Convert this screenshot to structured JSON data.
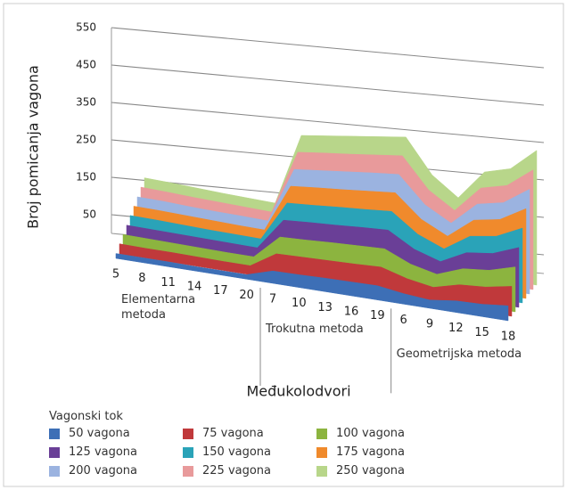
{
  "chart_data": {
    "type": "area3d",
    "y_label": "Broj pomicanja vagona",
    "x_label": "Međukolodvori",
    "legend_title": "Vagonski tok",
    "ylim": [
      0,
      550
    ],
    "yticks": [
      50,
      150,
      250,
      350,
      450,
      550
    ],
    "groups": [
      {
        "name": "Elementarna metoda",
        "categories": [
          5,
          8,
          11,
          14,
          17,
          20
        ]
      },
      {
        "name": "Trokutna metoda",
        "categories": [
          7,
          10,
          13,
          16,
          19
        ]
      },
      {
        "name": "Geometrijska metoda",
        "categories": [
          6,
          9,
          12,
          15,
          18
        ]
      }
    ],
    "series": [
      {
        "name": "50 vagona",
        "color": "#3d6fb6",
        "values": [
          13,
          13,
          13,
          12,
          12,
          12,
          33,
          34,
          36,
          37,
          38,
          28,
          22,
          31,
          33,
          40
        ]
      },
      {
        "name": "75 vagona",
        "color": "#c0393b",
        "values": [
          27,
          26,
          26,
          25,
          24,
          24,
          67,
          69,
          71,
          73,
          76,
          56,
          44,
          62,
          67,
          80
        ]
      },
      {
        "name": "100 vagona",
        "color": "#8cb43f",
        "values": [
          40,
          39,
          38,
          37,
          36,
          36,
          100,
          103,
          107,
          110,
          113,
          83,
          67,
          93,
          100,
          120
        ]
      },
      {
        "name": "125 vagona",
        "color": "#6a3f97",
        "values": [
          53,
          52,
          51,
          50,
          49,
          48,
          133,
          138,
          142,
          147,
          151,
          111,
          89,
          124,
          133,
          160
        ]
      },
      {
        "name": "150 vagona",
        "color": "#2aa3b8",
        "values": [
          67,
          66,
          64,
          62,
          61,
          60,
          167,
          172,
          178,
          183,
          189,
          139,
          111,
          156,
          167,
          200
        ]
      },
      {
        "name": "175 vagona",
        "color": "#f08a2c",
        "values": [
          80,
          79,
          77,
          75,
          73,
          72,
          200,
          207,
          213,
          220,
          227,
          167,
          133,
          187,
          200,
          240
        ]
      },
      {
        "name": "200 vagona",
        "color": "#9bb3e0",
        "values": [
          93,
          92,
          89,
          87,
          86,
          84,
          233,
          241,
          249,
          257,
          264,
          194,
          156,
          218,
          233,
          280
        ]
      },
      {
        "name": "225 vagona",
        "color": "#e89a9b",
        "values": [
          107,
          105,
          102,
          100,
          98,
          96,
          267,
          276,
          284,
          293,
          302,
          222,
          178,
          249,
          267,
          320
        ]
      },
      {
        "name": "250 vagona",
        "color": "#b8d68a",
        "values": [
          120,
          118,
          115,
          112,
          110,
          108,
          300,
          310,
          320,
          330,
          340,
          250,
          200,
          280,
          300,
          360
        ]
      }
    ]
  }
}
